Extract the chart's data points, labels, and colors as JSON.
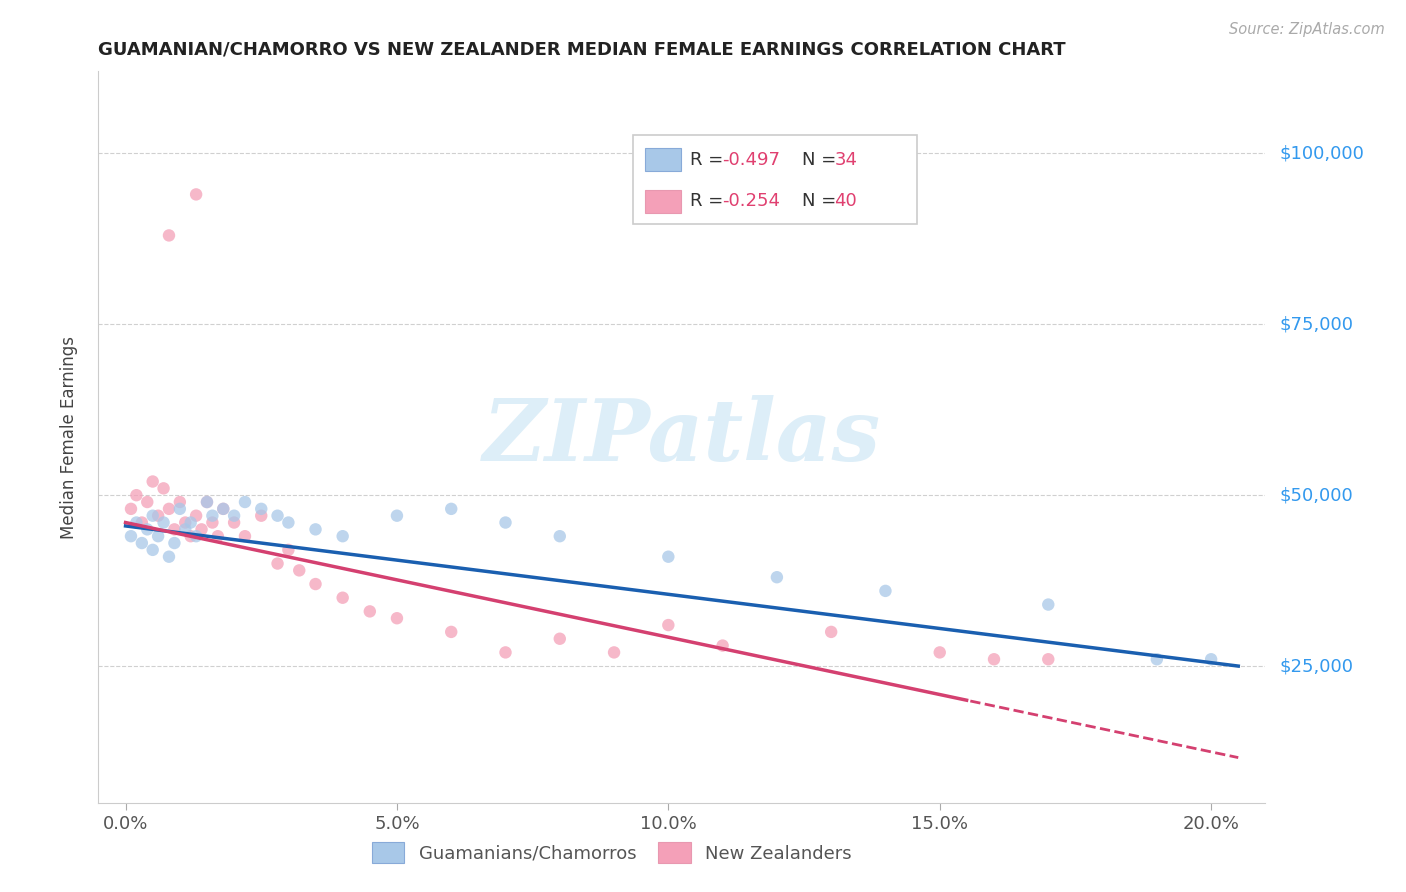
{
  "title": "GUAMANIAN/CHAMORRO VS NEW ZEALANDER MEDIAN FEMALE EARNINGS CORRELATION CHART",
  "source": "Source: ZipAtlas.com",
  "ylabel": "Median Female Earnings",
  "ytick_labels": [
    "$25,000",
    "$50,000",
    "$75,000",
    "$100,000"
  ],
  "ytick_vals": [
    25000,
    50000,
    75000,
    100000
  ],
  "xlabel_ticks": [
    "0.0%",
    "5.0%",
    "10.0%",
    "15.0%",
    "20.0%"
  ],
  "xlabel_vals": [
    0.0,
    0.05,
    0.1,
    0.15,
    0.2
  ],
  "xlim": [
    -0.005,
    0.21
  ],
  "ylim": [
    5000,
    112000
  ],
  "blue_color": "#a8c8e8",
  "pink_color": "#f4a0b8",
  "blue_line_color": "#1a5fb0",
  "pink_line_color": "#d44070",
  "blue_label": "Guamanians/Chamorros",
  "pink_label": "New Zealanders",
  "blue_scatter_x": [
    0.001,
    0.002,
    0.003,
    0.004,
    0.005,
    0.005,
    0.006,
    0.007,
    0.008,
    0.009,
    0.01,
    0.011,
    0.012,
    0.013,
    0.015,
    0.016,
    0.018,
    0.02,
    0.022,
    0.025,
    0.028,
    0.03,
    0.035,
    0.04,
    0.05,
    0.06,
    0.07,
    0.08,
    0.1,
    0.12,
    0.14,
    0.17,
    0.19,
    0.2
  ],
  "blue_scatter_y": [
    44000,
    46000,
    43000,
    45000,
    42000,
    47000,
    44000,
    46000,
    41000,
    43000,
    48000,
    45000,
    46000,
    44000,
    49000,
    47000,
    48000,
    47000,
    49000,
    48000,
    47000,
    46000,
    45000,
    44000,
    47000,
    48000,
    46000,
    44000,
    41000,
    38000,
    36000,
    34000,
    26000,
    26000
  ],
  "pink_scatter_x": [
    0.001,
    0.002,
    0.003,
    0.004,
    0.005,
    0.006,
    0.007,
    0.008,
    0.009,
    0.01,
    0.011,
    0.012,
    0.013,
    0.014,
    0.015,
    0.016,
    0.017,
    0.018,
    0.02,
    0.022,
    0.025,
    0.028,
    0.03,
    0.032,
    0.035,
    0.04,
    0.045,
    0.05,
    0.06,
    0.07,
    0.08,
    0.09,
    0.1,
    0.11,
    0.13,
    0.15,
    0.16,
    0.17,
    0.008,
    0.013
  ],
  "pink_scatter_y": [
    48000,
    50000,
    46000,
    49000,
    52000,
    47000,
    51000,
    48000,
    45000,
    49000,
    46000,
    44000,
    47000,
    45000,
    49000,
    46000,
    44000,
    48000,
    46000,
    44000,
    47000,
    40000,
    42000,
    39000,
    37000,
    35000,
    33000,
    32000,
    30000,
    27000,
    29000,
    27000,
    31000,
    28000,
    30000,
    27000,
    26000,
    26000,
    88000,
    94000
  ],
  "pink_line_solid_end": 0.155,
  "watermark_text": "ZIPatlas",
  "background_color": "#ffffff",
  "grid_color": "#d0d0d0",
  "right_label_color": "#3399ee",
  "scatter_size": 80,
  "scatter_alpha": 0.75
}
